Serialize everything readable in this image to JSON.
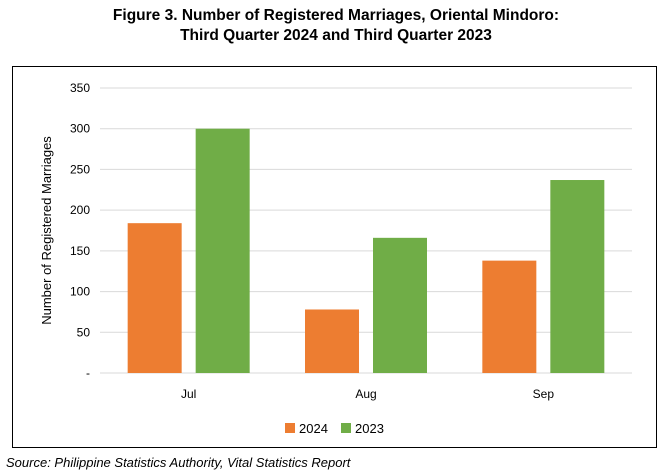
{
  "title_line1": "Figure 3. Number of Registered Marriages, Oriental Mindoro:",
  "title_line2": "Third Quarter 2024 and Third Quarter 2023",
  "source": "Source: Philippine Statistics Authority, Vital Statistics Report",
  "colors": {
    "series_2024": "#ED7D31",
    "series_2023": "#70AD47",
    "grid": "#d9d9d9"
  },
  "chart_data": {
    "type": "bar",
    "categories": [
      "Jul",
      "Aug",
      "Sep"
    ],
    "series": [
      {
        "name": "2024",
        "values": [
          184,
          78,
          138
        ]
      },
      {
        "name": "2023",
        "values": [
          300,
          166,
          237
        ]
      }
    ],
    "ylabel": "Number of Registered Marriages",
    "ylim": [
      0,
      350
    ],
    "yticks": [
      {
        "value": 0,
        "label": "-"
      },
      {
        "value": 50,
        "label": "50"
      },
      {
        "value": 100,
        "label": "100"
      },
      {
        "value": 150,
        "label": "150"
      },
      {
        "value": 200,
        "label": "200"
      },
      {
        "value": 250,
        "label": "250"
      },
      {
        "value": 300,
        "label": "300"
      },
      {
        "value": 350,
        "label": "350"
      }
    ],
    "grid": true,
    "legend_position": "bottom"
  }
}
